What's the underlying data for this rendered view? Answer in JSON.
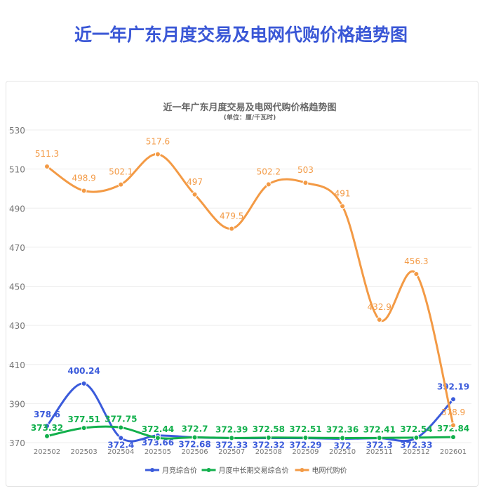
{
  "page_title": "近一年广东月度交易及电网代购价格趋势图",
  "chart_data": {
    "type": "line",
    "title": "近一年广东月度交易及电网代购价格趋势图",
    "subtitle": "(单位：厘/千瓦时)",
    "x": [
      "202502",
      "202503",
      "202504",
      "202505",
      "202506",
      "202507",
      "202508",
      "202509",
      "202510",
      "202511",
      "202512",
      "202601"
    ],
    "ylim": [
      370,
      530
    ],
    "yticks": [
      370,
      390,
      410,
      430,
      450,
      470,
      490,
      510,
      530
    ],
    "legend_position": "bottom",
    "series": [
      {
        "name": "月竞综合价",
        "color": "#3b5bdb",
        "values": [
          378.6,
          400.24,
          372.4,
          373.66,
          372.68,
          372.33,
          372.32,
          372.29,
          372,
          372.3,
          372.33,
          392.19
        ]
      },
      {
        "name": "月度中长期交易综合价",
        "color": "#12b04c",
        "values": [
          373.32,
          377.51,
          377.75,
          372.44,
          372.7,
          372.39,
          372.58,
          372.51,
          372.36,
          372.41,
          372.54,
          372.84
        ]
      },
      {
        "name": "电网代购价",
        "color": "#f39a45",
        "values": [
          511.3,
          498.9,
          502.1,
          517.6,
          497,
          479.5,
          502.2,
          503,
          491,
          432.9,
          456.3,
          378.9
        ]
      }
    ]
  }
}
